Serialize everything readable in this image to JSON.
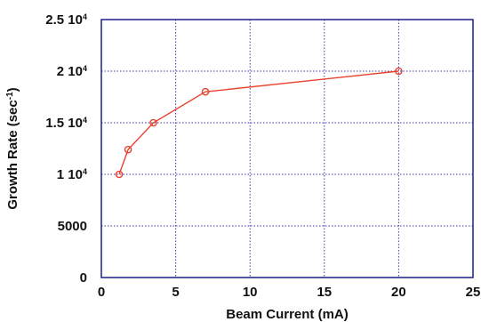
{
  "chart_data": {
    "type": "line",
    "xlabel": "Beam Current (mA)",
    "ylabel": "Growth Rate (sec",
    "ylabel_sup": "-1",
    "ylabel_close": ")",
    "xlim": [
      0,
      25
    ],
    "ylim": [
      0,
      25000
    ],
    "grid": true,
    "x_ticks": [
      {
        "value": 0,
        "label": "0"
      },
      {
        "value": 5,
        "label": "5"
      },
      {
        "value": 10,
        "label": "10"
      },
      {
        "value": 15,
        "label": "15"
      },
      {
        "value": 20,
        "label": "20"
      },
      {
        "value": 25,
        "label": "25"
      }
    ],
    "y_ticks": [
      {
        "value": 0,
        "label": "0",
        "exp": ""
      },
      {
        "value": 5000,
        "label": "5000",
        "exp": ""
      },
      {
        "value": 10000,
        "label": "1 10",
        "exp": "4"
      },
      {
        "value": 15000,
        "label": "1.5 10",
        "exp": "4"
      },
      {
        "value": 20000,
        "label": "2 10",
        "exp": "4"
      },
      {
        "value": 25000,
        "label": "2.5 10",
        "exp": "4"
      }
    ],
    "series": [
      {
        "color": "#e8432f",
        "marker": "circle",
        "x": [
          1.2,
          1.8,
          3.5,
          7,
          20
        ],
        "y": [
          10000,
          12400,
          15000,
          18000,
          20000
        ]
      }
    ]
  },
  "colors": {
    "grid": "#3a3aa8",
    "axes": "#1e1e8c",
    "text": "#111111"
  }
}
